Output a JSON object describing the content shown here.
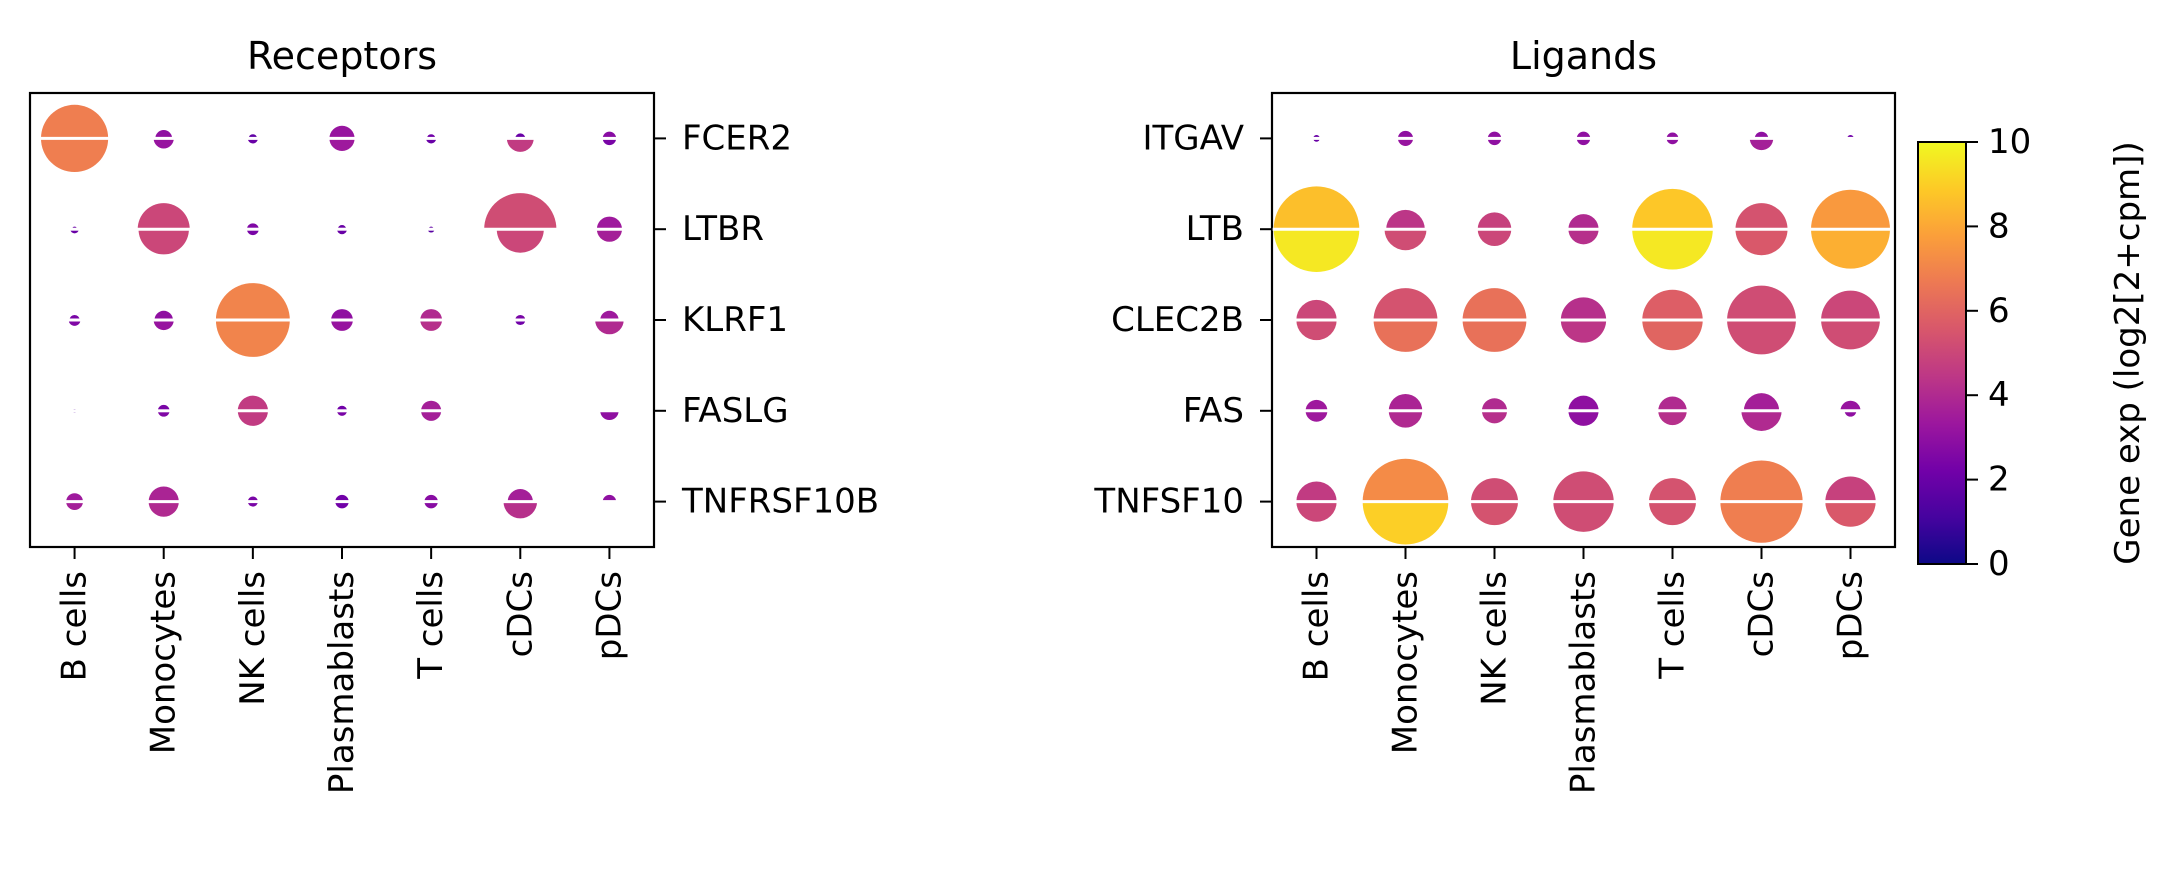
{
  "chart_data": [
    {
      "type": "dot-plot",
      "title": "Receptors",
      "categories": [
        "B cells",
        "Monocytes",
        "NK cells",
        "Plasmablasts",
        "T cells",
        "cDCs",
        "pDCs"
      ],
      "genes": [
        "FCER2",
        "LTBR",
        "KLRF1",
        "FASLG",
        "TNFRSF10B"
      ],
      "ytick_side": "right",
      "note": "each dot split in two halves: top and bottom; r = relative size, c = gene exp (log2[2+cpm]); null = no dot",
      "dots": [
        [
          {
            "top": {
              "r": 0.8,
              "c": 6.8
            },
            "bot": {
              "r": 0.8,
              "c": 6.8
            }
          },
          {
            "top": {
              "r": 0.2,
              "c": 3.0
            },
            "bot": {
              "r": 0.24,
              "c": 3.2
            }
          },
          {
            "top": {
              "r": 0.1,
              "c": 1.8
            },
            "bot": {
              "r": 0.12,
              "c": 2.0
            }
          },
          {
            "top": {
              "r": 0.3,
              "c": 3.2
            },
            "bot": {
              "r": 0.3,
              "c": 3.4
            }
          },
          {
            "top": {
              "r": 0.1,
              "c": 2.2
            },
            "bot": {
              "r": 0.12,
              "c": 2.0
            }
          },
          {
            "top": {
              "r": 0.12,
              "c": 2.0
            },
            "bot": {
              "r": 0.32,
              "c": 4.6
            }
          },
          {
            "top": {
              "r": 0.16,
              "c": 2.8
            },
            "bot": {
              "r": 0.16,
              "c": 2.4
            }
          }
        ],
        [
          {
            "top": {
              "r": 0.06,
              "c": 2.0
            },
            "bot": {
              "r": 0.1,
              "c": 2.0
            }
          },
          {
            "top": {
              "r": 0.62,
              "c": 5.0
            },
            "bot": {
              "r": 0.6,
              "c": 5.0
            }
          },
          {
            "top": {
              "r": 0.14,
              "c": 2.6
            },
            "bot": {
              "r": 0.14,
              "c": 2.4
            }
          },
          {
            "top": {
              "r": 0.1,
              "c": 2.0
            },
            "bot": {
              "r": 0.12,
              "c": 2.0
            }
          },
          {
            "top": {
              "r": 0.06,
              "c": 1.8
            },
            "bot": {
              "r": 0.08,
              "c": 1.6
            }
          },
          {
            "top": {
              "r": 0.86,
              "c": 5.2
            },
            "bot": {
              "r": 0.56,
              "c": 5.0
            }
          },
          {
            "top": {
              "r": 0.3,
              "c": 3.4
            },
            "bot": {
              "r": 0.3,
              "c": 3.6
            }
          }
        ],
        [
          {
            "top": {
              "r": 0.12,
              "c": 2.4
            },
            "bot": {
              "r": 0.14,
              "c": 2.6
            }
          },
          {
            "top": {
              "r": 0.22,
              "c": 3.0
            },
            "bot": {
              "r": 0.24,
              "c": 3.2
            }
          },
          {
            "top": {
              "r": 0.88,
              "c": 7.0
            },
            "bot": {
              "r": 0.88,
              "c": 7.0
            }
          },
          {
            "top": {
              "r": 0.26,
              "c": 3.0
            },
            "bot": {
              "r": 0.26,
              "c": 3.2
            }
          },
          {
            "top": {
              "r": 0.26,
              "c": 4.0
            },
            "bot": {
              "r": 0.26,
              "c": 4.2
            }
          },
          {
            "top": {
              "r": 0.12,
              "c": 2.4
            },
            "bot": {
              "r": 0.12,
              "c": 2.2
            }
          },
          {
            "top": {
              "r": 0.22,
              "c": 3.4
            },
            "bot": {
              "r": 0.34,
              "c": 4.0
            }
          }
        ],
        [
          {
            "top": {
              "r": 0.04,
              "c": 1.6
            },
            "bot": {
              "r": 0.04,
              "c": 1.6
            }
          },
          {
            "top": {
              "r": 0.14,
              "c": 2.4
            },
            "bot": {
              "r": 0.14,
              "c": 2.6
            }
          },
          {
            "top": {
              "r": 0.36,
              "c": 4.6
            },
            "bot": {
              "r": 0.36,
              "c": 4.6
            }
          },
          {
            "top": {
              "r": 0.12,
              "c": 2.2
            },
            "bot": {
              "r": 0.12,
              "c": 2.4
            }
          },
          {
            "top": {
              "r": 0.24,
              "c": 3.6
            },
            "bot": {
              "r": 0.24,
              "c": 3.6
            }
          },
          null,
          {
            "top": {
              "r": 0.0,
              "c": 0.0
            },
            "bot": {
              "r": 0.22,
              "c": 3.0
            }
          }
        ],
        [
          {
            "top": {
              "r": 0.2,
              "c": 3.4
            },
            "bot": {
              "r": 0.2,
              "c": 3.6
            }
          },
          {
            "top": {
              "r": 0.36,
              "c": 3.8
            },
            "bot": {
              "r": 0.36,
              "c": 4.0
            }
          },
          {
            "top": {
              "r": 0.12,
              "c": 2.4
            },
            "bot": {
              "r": 0.12,
              "c": 2.4
            }
          },
          {
            "top": {
              "r": 0.16,
              "c": 2.2
            },
            "bot": {
              "r": 0.16,
              "c": 2.2
            }
          },
          {
            "top": {
              "r": 0.16,
              "c": 2.8
            },
            "bot": {
              "r": 0.16,
              "c": 2.8
            }
          },
          {
            "top": {
              "r": 0.3,
              "c": 3.6
            },
            "bot": {
              "r": 0.4,
              "c": 4.2
            }
          },
          {
            "top": {
              "r": 0.16,
              "c": 3.0
            },
            "bot": {
              "r": 0.0,
              "c": 0.0
            }
          }
        ]
      ]
    },
    {
      "type": "dot-plot",
      "title": "Ligands",
      "categories": [
        "B cells",
        "Monocytes",
        "NK cells",
        "Plasmablasts",
        "T cells",
        "cDCs",
        "pDCs"
      ],
      "genes": [
        "ITGAV",
        "LTB",
        "CLEC2B",
        "FAS",
        "TNFSF10"
      ],
      "ytick_side": "left",
      "note": "each dot split in two halves: top and bottom; r = relative size, c = gene exp (log2[2+cpm]); null = no dot",
      "dots": [
        [
          {
            "top": {
              "r": 0.08,
              "c": 2.0
            },
            "bot": {
              "r": 0.08,
              "c": 2.0
            }
          },
          {
            "top": {
              "r": 0.18,
              "c": 3.0
            },
            "bot": {
              "r": 0.18,
              "c": 3.2
            }
          },
          {
            "top": {
              "r": 0.16,
              "c": 3.0
            },
            "bot": {
              "r": 0.16,
              "c": 3.0
            }
          },
          {
            "top": {
              "r": 0.16,
              "c": 3.0
            },
            "bot": {
              "r": 0.16,
              "c": 3.0
            }
          },
          {
            "top": {
              "r": 0.14,
              "c": 3.0
            },
            "bot": {
              "r": 0.14,
              "c": 3.0
            }
          },
          {
            "top": {
              "r": 0.16,
              "c": 3.0
            },
            "bot": {
              "r": 0.28,
              "c": 3.6
            }
          },
          {
            "top": {
              "r": 0.08,
              "c": 2.2
            },
            "bot": {
              "r": 0.0,
              "c": 0.0
            }
          }
        ],
        [
          {
            "top": {
              "r": 1.02,
              "c": 8.6
            },
            "bot": {
              "r": 1.02,
              "c": 9.6
            }
          },
          {
            "top": {
              "r": 0.46,
              "c": 4.4
            },
            "bot": {
              "r": 0.5,
              "c": 5.2
            }
          },
          {
            "top": {
              "r": 0.4,
              "c": 4.8
            },
            "bot": {
              "r": 0.4,
              "c": 5.0
            }
          },
          {
            "top": {
              "r": 0.36,
              "c": 4.0
            },
            "bot": {
              "r": 0.36,
              "c": 4.2
            }
          },
          {
            "top": {
              "r": 0.96,
              "c": 8.8
            },
            "bot": {
              "r": 0.96,
              "c": 9.6
            }
          },
          {
            "top": {
              "r": 0.62,
              "c": 5.4
            },
            "bot": {
              "r": 0.62,
              "c": 5.6
            }
          },
          {
            "top": {
              "r": 0.94,
              "c": 7.6
            },
            "bot": {
              "r": 0.94,
              "c": 8.2
            }
          }
        ],
        [
          {
            "top": {
              "r": 0.48,
              "c": 5.0
            },
            "bot": {
              "r": 0.48,
              "c": 5.2
            }
          },
          {
            "top": {
              "r": 0.76,
              "c": 5.4
            },
            "bot": {
              "r": 0.76,
              "c": 6.4
            }
          },
          {
            "top": {
              "r": 0.76,
              "c": 6.4
            },
            "bot": {
              "r": 0.76,
              "c": 6.4
            }
          },
          {
            "top": {
              "r": 0.54,
              "c": 4.2
            },
            "bot": {
              "r": 0.54,
              "c": 4.4
            }
          },
          {
            "top": {
              "r": 0.72,
              "c": 5.8
            },
            "bot": {
              "r": 0.72,
              "c": 6.0
            }
          },
          {
            "top": {
              "r": 0.82,
              "c": 5.2
            },
            "bot": {
              "r": 0.82,
              "c": 5.2
            }
          },
          {
            "top": {
              "r": 0.7,
              "c": 5.0
            },
            "bot": {
              "r": 0.7,
              "c": 5.2
            }
          }
        ],
        [
          {
            "top": {
              "r": 0.26,
              "c": 3.4
            },
            "bot": {
              "r": 0.26,
              "c": 3.4
            }
          },
          {
            "top": {
              "r": 0.4,
              "c": 3.8
            },
            "bot": {
              "r": 0.4,
              "c": 4.0
            }
          },
          {
            "top": {
              "r": 0.3,
              "c": 4.0
            },
            "bot": {
              "r": 0.3,
              "c": 4.2
            }
          },
          {
            "top": {
              "r": 0.36,
              "c": 3.0
            },
            "bot": {
              "r": 0.36,
              "c": 3.0
            }
          },
          {
            "top": {
              "r": 0.34,
              "c": 4.0
            },
            "bot": {
              "r": 0.34,
              "c": 4.2
            }
          },
          {
            "top": {
              "r": 0.42,
              "c": 3.6
            },
            "bot": {
              "r": 0.48,
              "c": 4.0
            }
          },
          {
            "top": {
              "r": 0.24,
              "c": 3.2
            },
            "bot": {
              "r": 0.14,
              "c": 3.0
            }
          }
        ],
        [
          {
            "top": {
              "r": 0.48,
              "c": 4.6
            },
            "bot": {
              "r": 0.48,
              "c": 5.0
            }
          },
          {
            "top": {
              "r": 1.02,
              "c": 7.2
            },
            "bot": {
              "r": 1.02,
              "c": 9.0
            }
          },
          {
            "top": {
              "r": 0.56,
              "c": 5.2
            },
            "bot": {
              "r": 0.56,
              "c": 5.4
            }
          },
          {
            "top": {
              "r": 0.72,
              "c": 5.2
            },
            "bot": {
              "r": 0.72,
              "c": 5.2
            }
          },
          {
            "top": {
              "r": 0.56,
              "c": 5.4
            },
            "bot": {
              "r": 0.56,
              "c": 5.4
            }
          },
          {
            "top": {
              "r": 0.98,
              "c": 6.8
            },
            "bot": {
              "r": 0.98,
              "c": 6.8
            }
          },
          {
            "top": {
              "r": 0.6,
              "c": 4.8
            },
            "bot": {
              "r": 0.6,
              "c": 5.6
            }
          }
        ]
      ]
    }
  ],
  "colorbar": {
    "label": "Gene exp (log2[2+cpm])",
    "min": 0,
    "max": 10,
    "ticks": [
      "0",
      "2",
      "4",
      "6",
      "8",
      "10"
    ],
    "colormap": "plasma"
  }
}
